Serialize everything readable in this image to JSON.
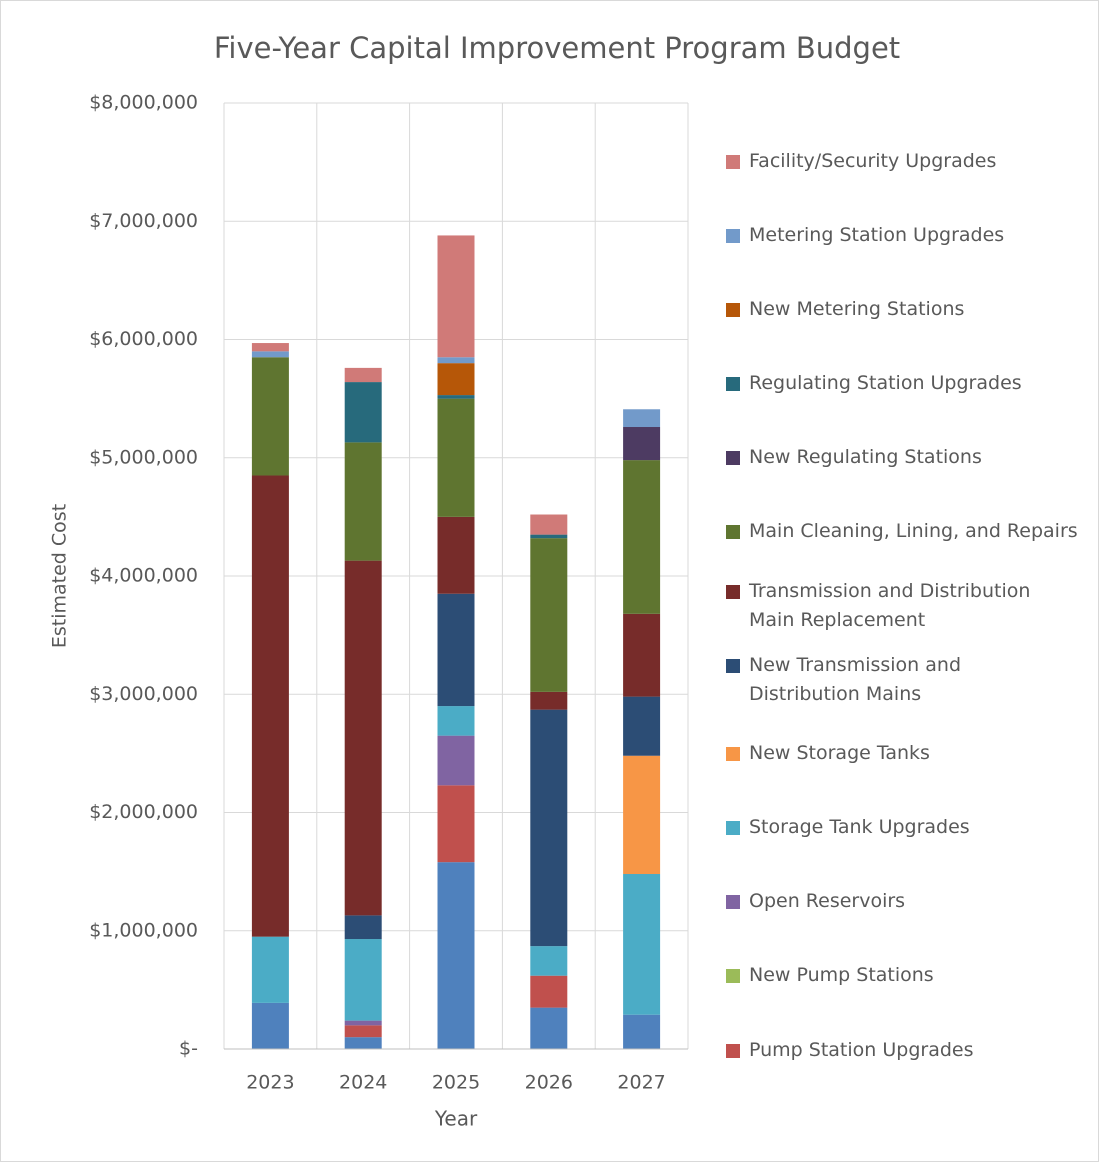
{
  "chart_data": {
    "type": "stacked_bar",
    "title": "Five-Year Capital Improvement Program Budget",
    "x_label": "Year",
    "y_label": "Estimated Cost",
    "categories": [
      "2023",
      "2024",
      "2025",
      "2026",
      "2027"
    ],
    "ylim": [
      0,
      8000000
    ],
    "yticks": [
      {
        "value": 0,
        "label": "$-"
      },
      {
        "value": 1000000,
        "label": "$1,000,000"
      },
      {
        "value": 2000000,
        "label": "$2,000,000"
      },
      {
        "value": 3000000,
        "label": "$3,000,000"
      },
      {
        "value": 4000000,
        "label": "$4,000,000"
      },
      {
        "value": 5000000,
        "label": "$5,000,000"
      },
      {
        "value": 6000000,
        "label": "$6,000,000"
      },
      {
        "value": 7000000,
        "label": "$7,000,000"
      },
      {
        "value": 8000000,
        "label": "$8,000,000"
      }
    ],
    "grid": true,
    "legend": "right",
    "series": [
      {
        "name": null,
        "color": "#4f81bd",
        "values": [
          390000,
          100000,
          1580000,
          350000,
          290000
        ]
      },
      {
        "name": "Pump Station Upgrades",
        "color": "#c0504d",
        "values": [
          0,
          100000,
          650000,
          270000,
          0
        ]
      },
      {
        "name": "New Pump Stations",
        "color": "#9bbb59",
        "values": [
          0,
          0,
          0,
          0,
          0
        ]
      },
      {
        "name": "Open Reservoirs",
        "color": "#8064a2",
        "values": [
          0,
          40000,
          420000,
          0,
          0
        ]
      },
      {
        "name": "Storage Tank Upgrades",
        "color": "#4bacc6",
        "values": [
          560000,
          690000,
          250000,
          250000,
          1190000
        ]
      },
      {
        "name": "New Storage Tanks",
        "color": "#f79646",
        "values": [
          0,
          0,
          0,
          0,
          1000000
        ]
      },
      {
        "name": "New Transmission and Distribution Mains",
        "color": "#2c4d75",
        "values": [
          0,
          200000,
          950000,
          2000000,
          500000
        ]
      },
      {
        "name": "Transmission and Distribution Main Replacement",
        "color": "#772c2a",
        "values": [
          3900000,
          3000000,
          650000,
          150000,
          700000
        ]
      },
      {
        "name": "Main Cleaning, Lining, and Repairs",
        "color": "#5f7530",
        "values": [
          1000000,
          1000000,
          1000000,
          1300000,
          1300000
        ]
      },
      {
        "name": "New Regulating Stations",
        "color": "#4d3b62",
        "values": [
          0,
          0,
          0,
          0,
          280000
        ]
      },
      {
        "name": "Regulating Station Upgrades",
        "color": "#276a7c",
        "values": [
          0,
          510000,
          30000,
          30000,
          0
        ]
      },
      {
        "name": "New Metering Stations",
        "color": "#b65708",
        "values": [
          0,
          0,
          270000,
          0,
          0
        ]
      },
      {
        "name": "Metering Station Upgrades",
        "color": "#729aca",
        "values": [
          50000,
          0,
          50000,
          0,
          150000
        ]
      },
      {
        "name": "Facility/Security Upgrades",
        "color": "#d07a78",
        "values": [
          70000,
          120000,
          1030000,
          170000,
          0
        ]
      }
    ]
  }
}
